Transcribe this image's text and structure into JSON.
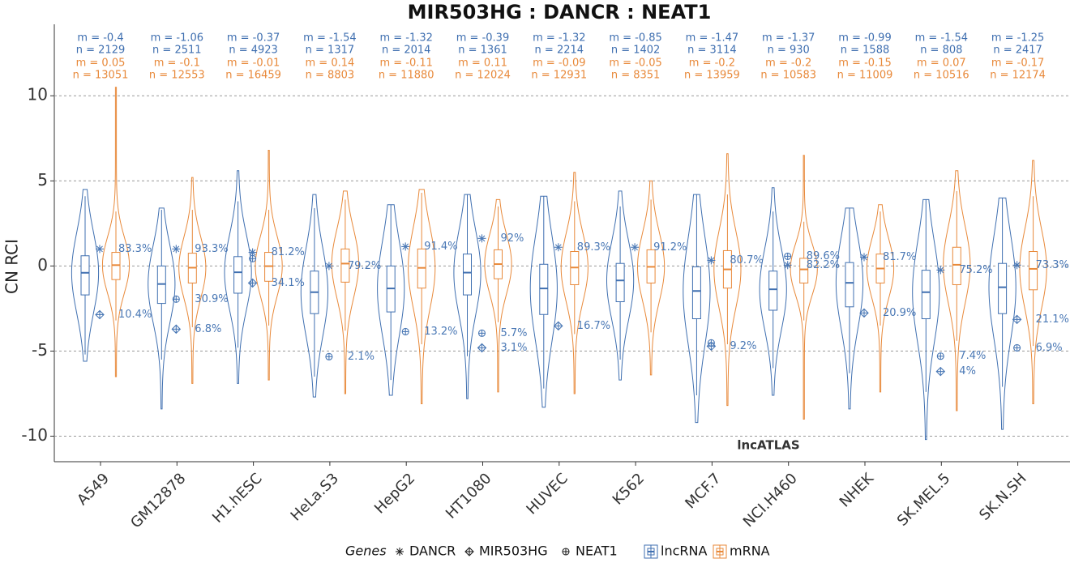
{
  "chart_data": {
    "type": "violin",
    "title": "MIR503HG : DANCR : NEAT1",
    "ylabel": "CN RCI",
    "annotation": "lncATLAS",
    "ylim": [
      -11.5,
      14.2
    ],
    "yticks": [
      -10,
      -5,
      0,
      5,
      10
    ],
    "grid": true,
    "legend_title": "Genes",
    "categories": [
      "A549",
      "GM12878",
      "H1.hESC",
      "HeLa.S3",
      "HepG2",
      "HT1080",
      "HUVEC",
      "K562",
      "MCF.7",
      "NCI.H460",
      "NHEK",
      "SK.MEL.5",
      "SK.N.SH"
    ],
    "series": [
      {
        "name": "lncRNA",
        "color": "#3f6fb0",
        "m": [
          -0.4,
          -1.06,
          -0.37,
          -1.54,
          -1.32,
          -0.39,
          -1.32,
          -0.85,
          -1.47,
          -1.37,
          -0.99,
          -1.54,
          -1.25
        ],
        "m_labels": [
          "m = -0.4",
          "m = -1.06",
          "m = -0.37",
          "m = -1.54",
          "m = -1.32",
          "m = -0.39",
          "m = -1.32",
          "m = -0.85",
          "m = -1.47",
          "m = -1.37",
          "m = -0.99",
          "m = -1.54",
          "m = -1.25"
        ],
        "n": [
          2129,
          2511,
          4923,
          1317,
          2014,
          1361,
          2214,
          1402,
          3114,
          930,
          1588,
          808,
          2417
        ],
        "n_labels": [
          "n = 2129",
          "n = 2511",
          "n = 4923",
          "n = 1317",
          "n = 2014",
          "n = 1361",
          "n = 2214",
          "n = 1402",
          "n = 3114",
          "n = 930",
          "n = 1588",
          "n = 808",
          "n = 2417"
        ],
        "q1": [
          -1.7,
          -2.2,
          -1.6,
          -2.8,
          -2.7,
          -1.7,
          -2.85,
          -2.1,
          -3.1,
          -2.6,
          -2.4,
          -3.1,
          -2.8
        ],
        "q3": [
          0.6,
          0.0,
          0.55,
          -0.3,
          0.0,
          0.7,
          0.1,
          0.15,
          -0.05,
          -0.3,
          0.2,
          -0.25,
          0.15
        ],
        "lo": [
          -5.2,
          -5.5,
          -4.8,
          -6.5,
          -6.7,
          -5.3,
          -7.2,
          -5.5,
          -7.6,
          -6.0,
          -6.3,
          -7.4,
          -7.1
        ],
        "hi": [
          4.1,
          3.3,
          3.8,
          3.4,
          3.6,
          4.2,
          4.1,
          3.5,
          4.2,
          3.2,
          3.4,
          3.9,
          4.0
        ],
        "min": [
          -5.6,
          -8.4,
          -6.9,
          -7.7,
          -7.6,
          -7.8,
          -8.3,
          -6.7,
          -9.2,
          -7.6,
          -8.4,
          -10.2,
          -9.6
        ],
        "max": [
          4.5,
          3.4,
          5.6,
          4.2,
          3.6,
          4.2,
          4.1,
          4.4,
          4.2,
          4.6,
          3.4,
          3.9,
          4.0
        ]
      },
      {
        "name": "mRNA",
        "color": "#e8893a",
        "m": [
          0.05,
          -0.1,
          -0.01,
          0.14,
          -0.11,
          0.11,
          -0.09,
          -0.05,
          -0.2,
          -0.2,
          -0.15,
          0.07,
          -0.17
        ],
        "m_labels": [
          "m = 0.05",
          "m = -0.1",
          "m = -0.01",
          "m = 0.14",
          "m = -0.11",
          "m = 0.11",
          "m = -0.09",
          "m = -0.05",
          "m = -0.2",
          "m = -0.2",
          "m = -0.15",
          "m = 0.07",
          "m = -0.17"
        ],
        "n": [
          13051,
          12553,
          16459,
          8803,
          11880,
          12024,
          12931,
          8351,
          13959,
          10583,
          11009,
          10516,
          12174
        ],
        "n_labels": [
          "n = 13051",
          "n = 12553",
          "n = 16459",
          "n = 8803",
          "n = 11880",
          "n = 12024",
          "n = 12931",
          "n = 8351",
          "n = 13959",
          "n = 10583",
          "n = 11009",
          "n = 10516",
          "n = 12174"
        ],
        "q1": [
          -0.8,
          -1.0,
          -0.9,
          -0.95,
          -1.3,
          -0.75,
          -1.1,
          -1.0,
          -1.3,
          -1.0,
          -1.0,
          -1.1,
          -1.4
        ],
        "q3": [
          0.8,
          0.75,
          0.8,
          1.0,
          1.0,
          0.95,
          0.85,
          0.95,
          0.9,
          0.45,
          0.7,
          1.1,
          0.85
        ],
        "lo": [
          -3.2,
          -3.6,
          -3.5,
          -3.8,
          -4.6,
          -3.3,
          -4.0,
          -3.9,
          -4.6,
          -3.2,
          -3.5,
          -4.4,
          -4.7
        ],
        "hi": [
          3.2,
          3.3,
          3.3,
          3.9,
          4.3,
          3.5,
          3.8,
          3.9,
          4.2,
          2.6,
          3.2,
          4.4,
          4.1
        ],
        "min": [
          -6.5,
          -6.9,
          -6.7,
          -7.5,
          -8.1,
          -7.4,
          -7.5,
          -6.4,
          -8.2,
          -9.0,
          -7.4,
          -8.5,
          -8.1
        ],
        "max": [
          10.5,
          5.2,
          6.8,
          4.4,
          4.5,
          3.9,
          5.5,
          5.0,
          6.6,
          6.5,
          3.6,
          5.6,
          6.2
        ]
      }
    ],
    "genes": [
      {
        "name": "DANCR",
        "marker": "asterisk",
        "color": "#4a78b5",
        "values": [
          1.0,
          1.0,
          0.8,
          0.0,
          1.14,
          1.62,
          1.1,
          1.1,
          0.33,
          0.05,
          0.52,
          -0.24,
          0.05
        ],
        "labels": [
          "83.3%",
          "93.3%",
          "81.2%",
          "79.2%",
          "91.4%",
          "92%",
          "89.3%",
          "91.2%",
          "80.7%",
          "82.2%",
          "81.7%",
          "75.2%",
          "73.3%"
        ]
      },
      {
        "name": "MIR503HG",
        "marker": "diamond",
        "color": "#4a78b5",
        "values": [
          -2.86,
          -3.71,
          -1.0,
          null,
          null,
          -4.81,
          -3.52,
          null,
          -4.71,
          null,
          -2.76,
          -6.2,
          -3.14
        ],
        "labels": [
          "10.4%",
          "6.8%",
          "34.1%",
          null,
          null,
          "3.1%",
          "16.7%",
          null,
          "9.2%",
          null,
          "20.9%",
          "4%",
          "21.1%"
        ]
      },
      {
        "name": "NEAT1",
        "marker": "circle",
        "color": "#4a78b5",
        "values": [
          null,
          -1.95,
          0.43,
          -5.33,
          -3.86,
          -3.95,
          null,
          null,
          -4.52,
          0.57,
          null,
          -5.3,
          -4.81
        ],
        "labels": [
          null,
          "30.9%",
          null,
          "2.1%",
          "13.2%",
          "5.7%",
          null,
          null,
          null,
          "89.6%",
          null,
          "7.4%",
          "6.9%"
        ]
      }
    ]
  }
}
